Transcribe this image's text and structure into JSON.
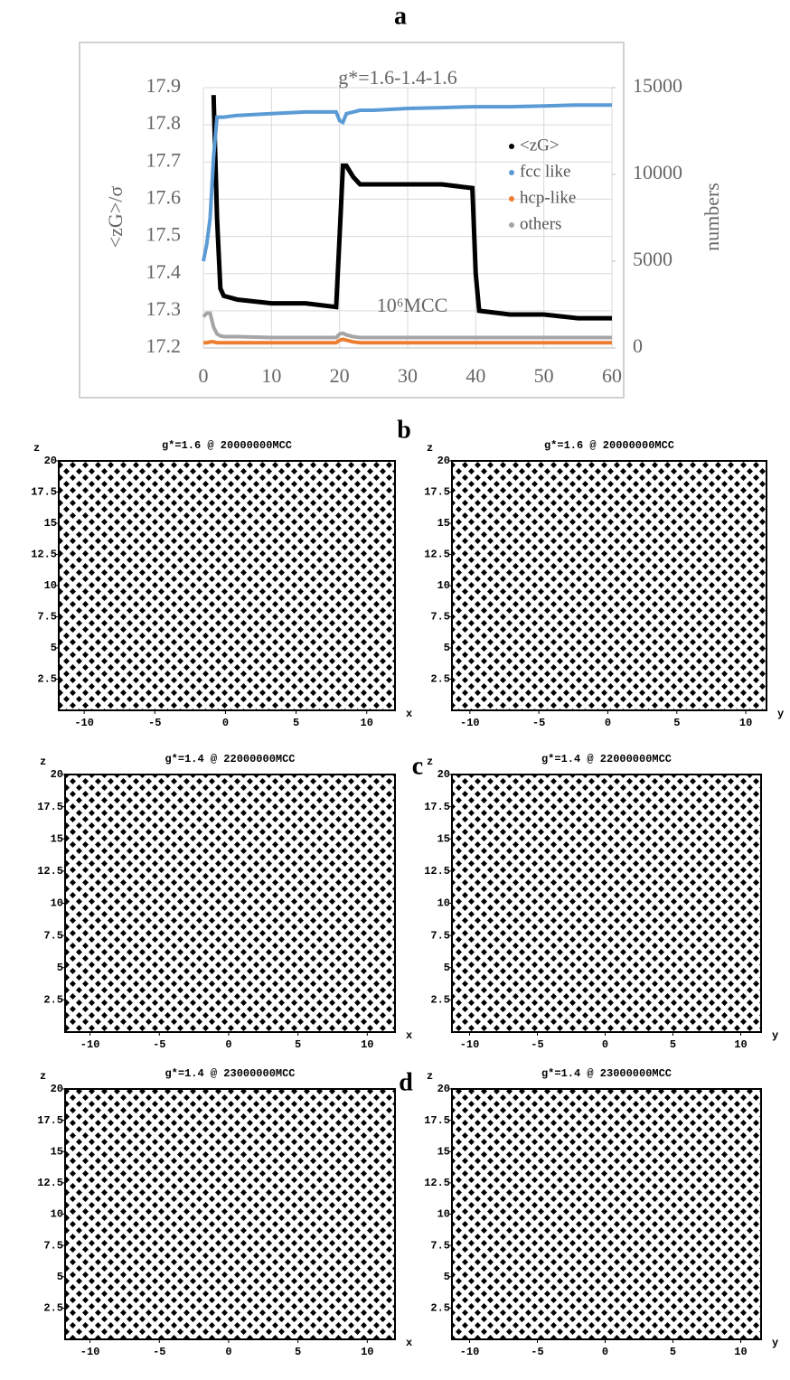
{
  "chart_data": [
    {
      "type": "line",
      "panel": "a",
      "title": "g*=1.6-1.4-1.6",
      "ylabel": "<zG>/σ",
      "y2label": "numbers",
      "annotation": "10⁶MCC",
      "x": [
        0,
        0.5,
        1,
        1.5,
        2,
        2.5,
        3,
        5,
        10,
        15,
        19.5,
        20,
        20.5,
        21,
        22,
        23,
        25,
        30,
        35,
        39.5,
        40,
        40.5,
        45,
        50,
        55,
        60
      ],
      "xlim": [
        0,
        60
      ],
      "xticks": [
        0,
        10,
        20,
        30,
        40,
        50,
        60
      ],
      "ylim": [
        17.2,
        17.9
      ],
      "yticks": [
        17.2,
        17.3,
        17.4,
        17.5,
        17.6,
        17.7,
        17.8,
        17.9
      ],
      "y2lim": [
        0,
        15000
      ],
      "y2ticks": [
        0,
        5000,
        10000,
        15000
      ],
      "grid": true,
      "legend": "right",
      "series": [
        {
          "name": "<zG>",
          "color": "#000000",
          "values": [
            null,
            null,
            null,
            17.88,
            17.55,
            17.36,
            17.34,
            17.33,
            17.32,
            17.32,
            17.31,
            17.5,
            17.69,
            17.69,
            17.66,
            17.64,
            17.64,
            17.64,
            17.64,
            17.63,
            17.4,
            17.3,
            17.29,
            17.29,
            17.28,
            17.28
          ]
        },
        {
          "name": "fcc like",
          "color": "#5b9bd5",
          "axis": "y2",
          "values": [
            5000,
            6000,
            7500,
            11000,
            13300,
            13300,
            13300,
            13400,
            13500,
            13600,
            13600,
            13100,
            13000,
            13500,
            13600,
            13700,
            13700,
            13800,
            13850,
            13900,
            13900,
            13900,
            13900,
            13950,
            14000,
            14000
          ]
        },
        {
          "name": "hcp-like",
          "color": "#ed7d31",
          "axis": "y2",
          "values": [
            300,
            300,
            350,
            350,
            300,
            300,
            300,
            300,
            300,
            300,
            300,
            450,
            500,
            450,
            350,
            300,
            300,
            300,
            300,
            300,
            300,
            300,
            300,
            300,
            300,
            300
          ]
        },
        {
          "name": "others",
          "color": "#a5a5a5",
          "axis": "y2",
          "values": [
            1800,
            2000,
            2000,
            1200,
            800,
            700,
            650,
            650,
            600,
            600,
            600,
            800,
            850,
            750,
            650,
            600,
            600,
            600,
            600,
            600,
            600,
            600,
            600,
            600,
            600,
            600
          ]
        }
      ]
    },
    {
      "type": "scatter",
      "panel": "b",
      "title": "g*=1.6 @ 20000000MCC",
      "xlabel": "x",
      "ylabel": "z",
      "xlim": [
        -11.8,
        12
      ],
      "xticks": [
        -10,
        -5,
        0,
        5,
        10
      ],
      "ylim": [
        0,
        20
      ],
      "yticks": [
        2.5,
        5,
        7.5,
        10,
        12.5,
        15,
        17.5,
        20
      ]
    },
    {
      "type": "scatter",
      "title": "g*=1.6 @ 20000000MCC",
      "xlabel": "y",
      "ylabel": "z",
      "xlim": [
        -11.3,
        11.5
      ],
      "xticks": [
        -10,
        -5,
        0,
        5,
        10
      ],
      "ylim": [
        0,
        20
      ],
      "yticks": [
        2.5,
        5,
        7.5,
        10,
        12.5,
        15,
        17.5,
        20
      ]
    },
    {
      "type": "scatter",
      "panel": "c",
      "title": "g*=1.4 @ 22000000MCC",
      "xlabel": "x",
      "ylabel": "z",
      "xlim": [
        -11.8,
        12
      ],
      "xticks": [
        -10,
        -5,
        0,
        5,
        10
      ],
      "ylim": [
        0,
        20
      ],
      "yticks": [
        2.5,
        5,
        7.5,
        10,
        12.5,
        15,
        17.5,
        20
      ]
    },
    {
      "type": "scatter",
      "title": "g*=1.4 @ 22000000MCC",
      "xlabel": "y",
      "ylabel": "z",
      "xlim": [
        -11.3,
        11.5
      ],
      "xticks": [
        -10,
        -5,
        0,
        5,
        10
      ],
      "ylim": [
        0,
        20
      ],
      "yticks": [
        2.5,
        5,
        7.5,
        10,
        12.5,
        15,
        17.5,
        20
      ]
    },
    {
      "type": "scatter",
      "panel": "d",
      "title": "g*=1.4 @ 23000000MCC",
      "xlabel": "x",
      "ylabel": "z",
      "xlim": [
        -11.8,
        12
      ],
      "xticks": [
        -10,
        -5,
        0,
        5,
        10
      ],
      "ylim": [
        0,
        20
      ],
      "yticks": [
        2.5,
        5,
        7.5,
        10,
        12.5,
        15,
        17.5,
        20
      ]
    },
    {
      "type": "scatter",
      "title": "g*=1.4 @ 23000000MCC",
      "xlabel": "y",
      "ylabel": "z",
      "xlim": [
        -11.3,
        11.5
      ],
      "xticks": [
        -10,
        -5,
        0,
        5,
        10
      ],
      "ylim": [
        0,
        20
      ],
      "yticks": [
        2.5,
        5,
        7.5,
        10,
        12.5,
        15,
        17.5,
        20
      ]
    }
  ]
}
